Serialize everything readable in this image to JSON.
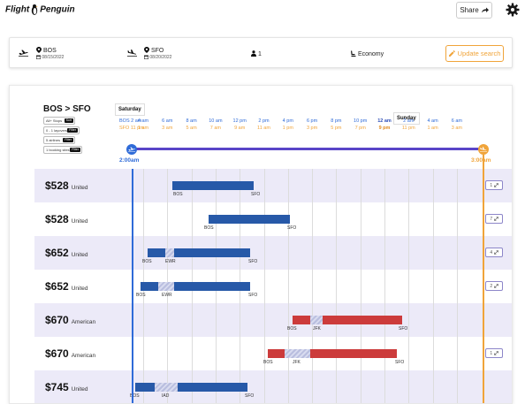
{
  "app": {
    "logo_text_1": "Flight",
    "logo_text_2": "Penguin"
  },
  "header": {
    "share_label": "Share"
  },
  "search": {
    "origin_code": "BOS",
    "origin_date": "08/15/2022",
    "dest_code": "SFO",
    "dest_date": "08/20/2022",
    "passengers": "1",
    "cabin": "Economy",
    "update_label": "Update search"
  },
  "results": {
    "route_title": "BOS > SFO",
    "filters": [
      {
        "label": "All+ Stops",
        "button": "Sort"
      },
      {
        "label": "0 - 1 layovers",
        "button": "Filter"
      },
      {
        "label": "5 airlines",
        "button": "Filter"
      },
      {
        "label": "1 booking sites",
        "button": "Filter"
      }
    ],
    "day_left": "Saturday",
    "day_right": "Sunday",
    "tz_bos": "BOS 2 am",
    "tz_sfo": "SFO 11 pm",
    "ticks": [
      {
        "top": "4 am",
        "bottom": "1 am"
      },
      {
        "top": "6 am",
        "bottom": "3 am"
      },
      {
        "top": "8 am",
        "bottom": "5 am"
      },
      {
        "top": "10 am",
        "bottom": "7 am"
      },
      {
        "top": "12 pm",
        "bottom": "9 am"
      },
      {
        "top": "2 pm",
        "bottom": "11 am"
      },
      {
        "top": "4 pm",
        "bottom": "1 pm"
      },
      {
        "top": "6 pm",
        "bottom": "3 pm"
      },
      {
        "top": "8 pm",
        "bottom": "5 pm"
      },
      {
        "top": "10 pm",
        "bottom": "7 pm"
      },
      {
        "top": "12 am",
        "bottom": "9 pm"
      },
      {
        "top": "2 am",
        "bottom": "11 pm"
      },
      {
        "top": "4 am",
        "bottom": "1 am"
      },
      {
        "top": "6 am",
        "bottom": "3 am"
      }
    ],
    "start_time": "2:00am",
    "end_time": "3:00am",
    "flights": [
      {
        "price": "$528",
        "airline": "United",
        "badge": "1",
        "airports": [
          "BOS",
          "SFO"
        ]
      },
      {
        "price": "$528",
        "airline": "United",
        "badge": "7",
        "airports": [
          "BOS",
          "SFO"
        ]
      },
      {
        "price": "$652",
        "airline": "United",
        "badge": "4",
        "airports": [
          "BOS",
          "EWR",
          "SFO"
        ]
      },
      {
        "price": "$652",
        "airline": "United",
        "badge": "2",
        "airports": [
          "BOS",
          "EWR",
          "SFO"
        ]
      },
      {
        "price": "$670",
        "airline": "American",
        "badge": "",
        "airports": [
          "BOS",
          "JFK",
          "SFO"
        ]
      },
      {
        "price": "$670",
        "airline": "American",
        "badge": "1",
        "airports": [
          "BOS",
          "JFK",
          "SFO"
        ]
      },
      {
        "price": "$745",
        "airline": "United",
        "badge": "",
        "airports": [
          "BOS",
          "IAD",
          "SFO"
        ]
      }
    ]
  },
  "colors": {
    "united": "#2759a8",
    "american": "#cc3b3b",
    "layover": "#b9bedf",
    "accent_orange": "#f0a43a",
    "accent_blue": "#2f6bd8",
    "track": "#5a45c8"
  }
}
